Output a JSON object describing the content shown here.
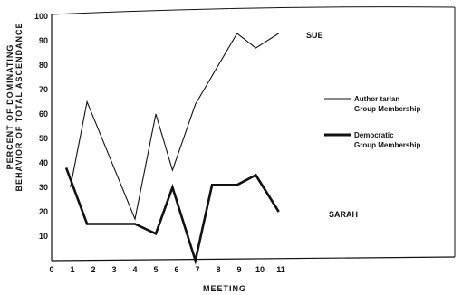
{
  "chart_data": {
    "type": "line",
    "title": "",
    "xlabel": "MEETING",
    "ylabel_lines": [
      "PERCENT OF DOMINATING",
      "BEHAVIOR OF TOTAL ASCENDANCE"
    ],
    "x_ticks": [
      "0",
      "1",
      "2",
      "3",
      "4",
      "5",
      "6",
      "7",
      "8",
      "9",
      "10",
      "11"
    ],
    "y_ticks": [
      "10",
      "20",
      "30",
      "40",
      "50",
      "60",
      "70",
      "80",
      "90",
      "100"
    ],
    "xlim": [
      0,
      11
    ],
    "ylim": [
      0,
      100
    ],
    "grid": false,
    "series": [
      {
        "name": "Sue",
        "label": "SUE",
        "style": "thin",
        "x": [
          0.9,
          1.7,
          4.0,
          5.0,
          5.8,
          6.9,
          8.9,
          9.8,
          10.9
        ],
        "y": [
          30,
          65,
          17,
          60,
          37,
          64,
          93,
          87,
          93
        ]
      },
      {
        "name": "Sarah",
        "label": "SARAH",
        "style": "thick",
        "x": [
          0.7,
          1.7,
          4.0,
          5.0,
          5.8,
          6.9,
          7.7,
          8.9,
          9.8,
          10.9
        ],
        "y": [
          38,
          15,
          15,
          11,
          30,
          0,
          31,
          31,
          35,
          20
        ]
      }
    ],
    "legend": {
      "placement": "right",
      "items": [
        {
          "lines": [
            "Author tarlan",
            "Group Membership"
          ],
          "style": "thin"
        },
        {
          "lines": [
            "Democratic",
            "Group Membership"
          ],
          "style": "thick"
        }
      ]
    },
    "annotations": [
      {
        "text": "SUE",
        "series": "Sue"
      },
      {
        "text": "SARAH",
        "series": "Sarah"
      }
    ]
  }
}
